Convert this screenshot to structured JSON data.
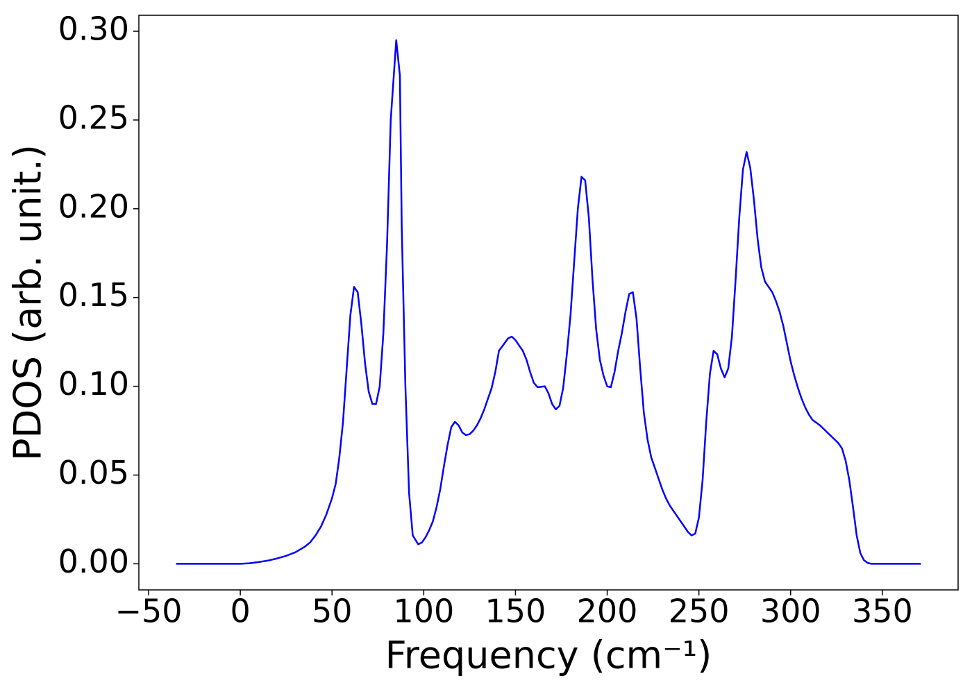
{
  "chart_data": {
    "type": "line",
    "x_label": "Frequency (cm⁻¹)",
    "y_label": "PDOS (arb. unit.)",
    "series": [
      {
        "color": "#0000ff",
        "x": [
          -35,
          0,
          5,
          10,
          15,
          20,
          25,
          30,
          35,
          38,
          41,
          44,
          47,
          50,
          52,
          54,
          56,
          58,
          60,
          62,
          64,
          66,
          68,
          70,
          72,
          74,
          76,
          78,
          80,
          82,
          85,
          87,
          88,
          90,
          92,
          94,
          97,
          99,
          101,
          103,
          105,
          107,
          109,
          111,
          113,
          115,
          117,
          119,
          121,
          123,
          125,
          127,
          129,
          131,
          133,
          135,
          137,
          139,
          141,
          146,
          148,
          150,
          152,
          154,
          156,
          158,
          160,
          162,
          164,
          166,
          168,
          170,
          172,
          174,
          176,
          178,
          180,
          182,
          184,
          186,
          188,
          190,
          192,
          194,
          196,
          198,
          200,
          202,
          204,
          206,
          208,
          210,
          212,
          214,
          216,
          218,
          220,
          222,
          224,
          226,
          228,
          230,
          232,
          234,
          236,
          238,
          240,
          242,
          244,
          246,
          248,
          250,
          252,
          254,
          256,
          258,
          260,
          262,
          264,
          266,
          268,
          270,
          272,
          274,
          276,
          278,
          280,
          282,
          284,
          286,
          288,
          290,
          292,
          294,
          296,
          298,
          300,
          302,
          304,
          306,
          308,
          310,
          312,
          314,
          316,
          318,
          320,
          322,
          324,
          326,
          328,
          330,
          332,
          334,
          336,
          338,
          340,
          342,
          344,
          346,
          371
        ],
        "values": [
          0,
          0,
          0.0003,
          0.001,
          0.0018,
          0.003,
          0.0045,
          0.0065,
          0.0095,
          0.012,
          0.016,
          0.021,
          0.028,
          0.037,
          0.045,
          0.06,
          0.08,
          0.11,
          0.14,
          0.156,
          0.153,
          0.135,
          0.113,
          0.097,
          0.09,
          0.09,
          0.1,
          0.13,
          0.18,
          0.25,
          0.295,
          0.275,
          0.19,
          0.1,
          0.04,
          0.016,
          0.011,
          0.012,
          0.015,
          0.019,
          0.024,
          0.032,
          0.042,
          0.055,
          0.067,
          0.077,
          0.08,
          0.078,
          0.074,
          0.0725,
          0.073,
          0.075,
          0.078,
          0.082,
          0.087,
          0.093,
          0.099,
          0.108,
          0.12,
          0.127,
          0.128,
          0.126,
          0.123,
          0.12,
          0.115,
          0.108,
          0.102,
          0.0995,
          0.0997,
          0.1,
          0.096,
          0.09,
          0.087,
          0.089,
          0.099,
          0.118,
          0.14,
          0.17,
          0.2,
          0.218,
          0.216,
          0.195,
          0.16,
          0.132,
          0.115,
          0.106,
          0.1,
          0.0995,
          0.108,
          0.12,
          0.13,
          0.142,
          0.152,
          0.153,
          0.138,
          0.11,
          0.085,
          0.07,
          0.06,
          0.054,
          0.048,
          0.042,
          0.037,
          0.033,
          0.03,
          0.027,
          0.024,
          0.021,
          0.018,
          0.016,
          0.017,
          0.026,
          0.047,
          0.08,
          0.107,
          0.12,
          0.118,
          0.11,
          0.105,
          0.11,
          0.128,
          0.16,
          0.195,
          0.222,
          0.232,
          0.223,
          0.205,
          0.183,
          0.167,
          0.159,
          0.156,
          0.153,
          0.148,
          0.142,
          0.134,
          0.124,
          0.114,
          0.106,
          0.099,
          0.093,
          0.088,
          0.084,
          0.081,
          0.0795,
          0.078,
          0.076,
          0.074,
          0.072,
          0.07,
          0.068,
          0.065,
          0.058,
          0.047,
          0.032,
          0.016,
          0.006,
          0.002,
          0.0005,
          0,
          0,
          0
        ]
      }
    ],
    "xlim": [
      -55.3,
      391.3
    ],
    "ylim": [
      -0.0147,
      0.309
    ],
    "xticks": [
      {
        "value": -50,
        "label": "−50"
      },
      0,
      50,
      100,
      150,
      200,
      250,
      300,
      350
    ],
    "yticks": [
      {
        "value": 0,
        "label": "0.00"
      },
      {
        "value": 0.05,
        "label": "0.05"
      },
      {
        "value": 0.1,
        "label": "0.10"
      },
      {
        "value": 0.15,
        "label": "0.15"
      },
      {
        "value": 0.2,
        "label": "0.20"
      },
      {
        "value": 0.25,
        "label": "0.25"
      },
      {
        "value": 0.3,
        "label": "0.30"
      }
    ],
    "grid": false
  }
}
